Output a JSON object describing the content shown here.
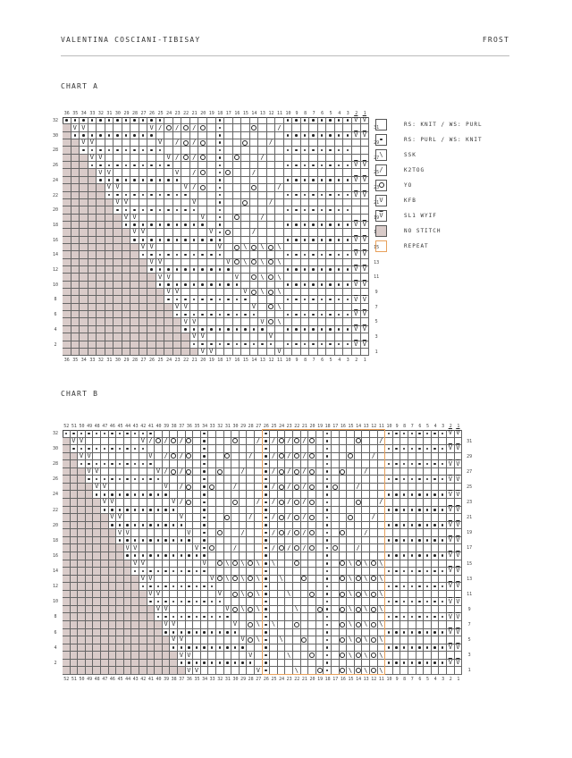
{
  "header": {
    "designer": "VALENTINA COSCIANI-TIBISAY",
    "pattern": "FROST"
  },
  "colors": {
    "no_stitch": "#d9cbc9",
    "repeat": "#e8a15c"
  },
  "symbol_key": {
    "#": "no-stitch",
    ".": "purl",
    " ": "knit",
    "v": "kfb",
    "w": "sl1-wyif",
    "k": "k2tog",
    "s": "ssk",
    "o": "yo"
  },
  "legend": [
    {
      "symbol": " ",
      "label": "RS: KNIT / WS: PURL"
    },
    {
      "symbol": ".",
      "label": "RS: PURL / WS: KNIT"
    },
    {
      "symbol": "s",
      "label": "SSK"
    },
    {
      "symbol": "k",
      "label": "K2TOG"
    },
    {
      "symbol": "o",
      "label": "YO"
    },
    {
      "symbol": "v",
      "label": "KFB"
    },
    {
      "symbol": "w",
      "label": "SL1 WYIF"
    },
    {
      "symbol": "#",
      "label": "NO STITCH"
    },
    {
      "symbol": "repeat",
      "label": "REPEAT"
    }
  ],
  "chart_a": {
    "title": "CHART A",
    "columns": 36,
    "rows_count": 32,
    "rows": [
      "............      .       ........ww",
      "#vv       vkokoko .   o  k          ",
      "#..........       .       ........ww",
      "##vv       v koko .  o  k           ",
      "##..........      .       ........  ",
      "###vv       vkoko . o  k            ",
      "###..........     .       ........ww",
      "####vv       v ko .o  k             ",
      "####..........    .       ........ww",
      "#####vv       vko .   o  k          ",
      "#####..........   .       ........ww",
      "######vv       v  .  o  k           ",
      "######..........  .       ........  ",
      "#######vv       v . o  k            ",
      "#######.......... .       ........ww",
      "########vv       v.o  k             ",
      "########...........       ........ww",
      "#########vv       v ososos          ",
      "#########..........       ........ww",
      "##########vv       vososos          ",
      "##########..........      ........ww",
      "###########vv       v osos          ",
      "###########..........     ........ww",
      "############vv       vosos          ",
      "############..........    ........ww",
      "#############vv       v os          ",
      "#############..........   ........ww",
      "##############vv       vos          ",
      "##############..........  ........ww",
      "###############vv       v           ",
      "###############.......... ........ww",
      "################vv       v          "
    ]
  },
  "chart_b": {
    "title": "CHART B",
    "columns": 52,
    "rows_count": 32,
    "repeat_columns": [
      26,
      11
    ],
    "rows": [
      "............      .       .       .       ........ww",
      "#vv       vkokoko .   o  k.kokoko .   o  k          ",
      "#..........       .       .       .       ........ww",
      "##vv       v koko .  o  k .kokoko .  o  k           ",
      "##..........      .       .       .       ........ww",
      "###vv       vkoko . o  k  .kokoko . o  k            ",
      "###..........     .       .       .       ........ww",
      "####vv       v ko .o  k   .kokoko .o  k             ",
      "####..........    .       .       .       ........ww",
      "#####vv       vko .   o  k.kokoko .   o  k          ",
      "#####..........   .       .       .       ........ww",
      "######vv       v  .  o  k .kokoko .  o  k           ",
      "######..........  .       .       .       ........ww",
      "#######vv       v . o  k  .kokoko . o  k            ",
      "#######.......... .       .       .       ........ww",
      "########vv       v.o  k   .kokoko .o  k             ",
      "########...........       .       .       ........ww",
      "#########vv       v ososos.s  o   . ososos          ",
      "#########..........       .       .       ........ww",
      "##########vv       vososos. s  o  . ososos          ",
      "##########..........      .       .       ........ww",
      "###########vv       v osos.  s  o . ososos          ",
      "###########..........     .       .       ........ww",
      "############vv       vosos.   s  o. ososos          ",
      "############..........    .       .       ........ww",
      "#############vv       v os.s  o   . ososos          ",
      "#############..........   .       .       ........ww",
      "##############vv       vos. s  o  . ososos          ",
      "##############..........  .       .       ........ww",
      "###############vv       v .  s  o . ososos          ",
      "###############.......... .       .       ........ww",
      "################vv       v.   s  o. ososos          "
    ]
  }
}
